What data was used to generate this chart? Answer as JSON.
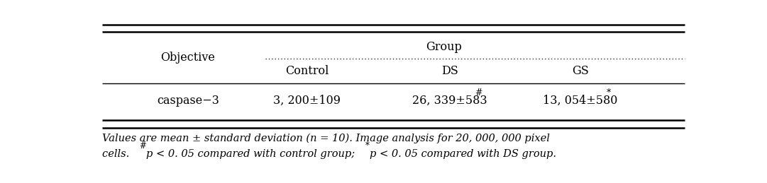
{
  "title": "Group",
  "col_header_left": "Objective",
  "col_headers": [
    "Control",
    "DS",
    "GS"
  ],
  "row_label": "caspase−3",
  "values": [
    "3, 200±109",
    "26, 339±583",
    "13, 054±580"
  ],
  "superscripts": [
    "",
    "#",
    "*"
  ],
  "footnote_line1": "Values are mean ± standard deviation (n = 10). Image analysis for 20, 000, 000 pixel",
  "footnote_line2_pre": "cells. ",
  "footnote_sup1": "#",
  "footnote_mid": "p < 0. 05 compared with control group; ",
  "footnote_sup2": "*",
  "footnote_end": "p < 0. 05 compared with DS group.",
  "bg_color": "#ffffff",
  "text_color": "#000000",
  "font_size": 11.5,
  "footnote_font_size": 10.5
}
